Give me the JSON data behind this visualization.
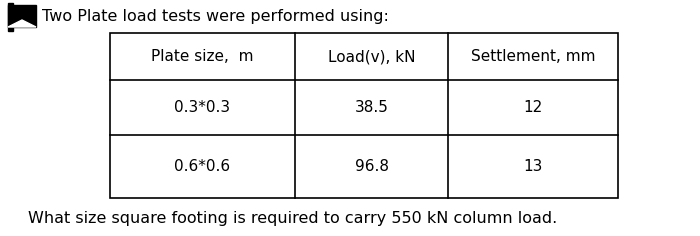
{
  "title": "Two Plate load tests were performed using:",
  "footer": "What size square footing is required to carry 550 kN column load.",
  "headers": [
    "Plate size,  m",
    "Load(v), kN",
    "Settlement, mm"
  ],
  "rows": [
    [
      "0.3*0.3",
      "38.5",
      "12"
    ],
    [
      "0.6*0.6",
      "96.8",
      "13"
    ]
  ],
  "background_color": "#ffffff",
  "title_fontsize": 11.5,
  "footer_fontsize": 11.5,
  "header_fontsize": 11,
  "cell_fontsize": 11,
  "icon_color": "#000000",
  "line_color": "#000000",
  "text_color": "#000000"
}
